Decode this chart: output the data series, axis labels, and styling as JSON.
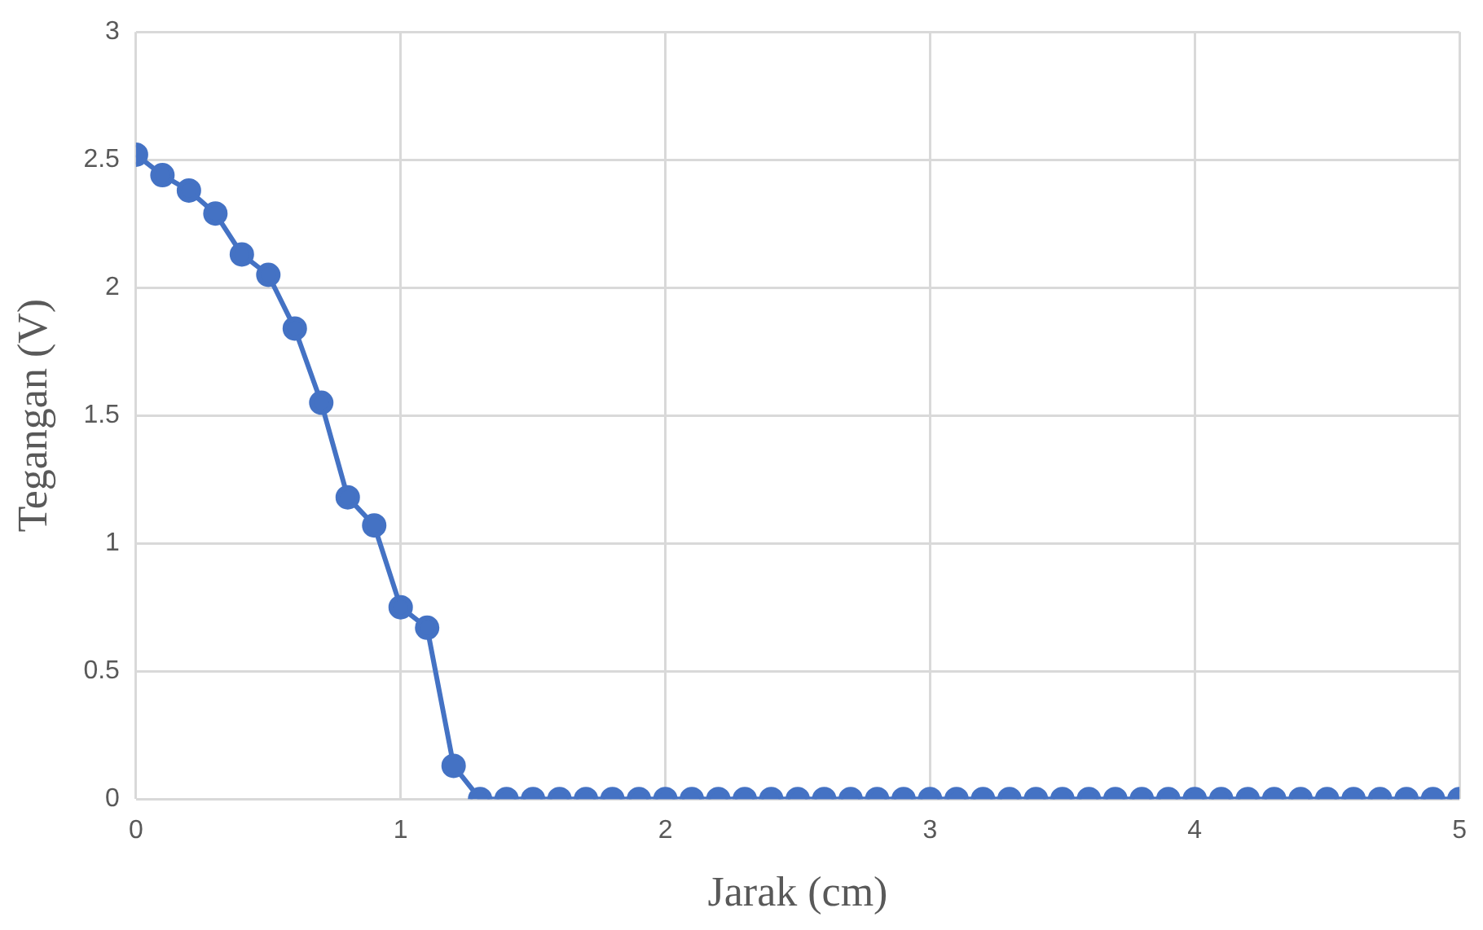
{
  "chart_data": {
    "type": "line",
    "xlabel": "Jarak (cm)",
    "ylabel": "Tegangan (V)",
    "x": [
      0,
      0.1,
      0.2,
      0.3,
      0.4,
      0.5,
      0.6,
      0.7,
      0.8,
      0.9,
      1,
      1.1,
      1.2,
      1.3,
      1.4,
      1.5,
      1.6,
      1.7,
      1.8,
      1.9,
      2,
      2.1,
      2.2,
      2.3,
      2.4,
      2.5,
      2.6,
      2.7,
      2.8,
      2.9,
      3,
      3.1,
      3.2,
      3.3,
      3.4,
      3.5,
      3.6,
      3.7,
      3.8,
      3.9,
      4,
      4.1,
      4.2,
      4.3,
      4.4,
      4.5,
      4.6,
      4.7,
      4.8,
      4.9,
      5
    ],
    "series": [
      {
        "color": "#4472c4",
        "values": [
          2.52,
          2.44,
          2.38,
          2.29,
          2.13,
          2.05,
          1.84,
          1.55,
          1.18,
          1.07,
          0.75,
          0.67,
          0.13,
          0,
          0,
          0,
          0,
          0,
          0,
          0,
          0,
          0,
          0,
          0,
          0,
          0,
          0,
          0,
          0,
          0,
          0,
          0,
          0,
          0,
          0,
          0,
          0,
          0,
          0,
          0,
          0,
          0,
          0,
          0,
          0,
          0,
          0,
          0,
          0,
          0,
          0
        ]
      }
    ],
    "xlim": [
      0,
      5
    ],
    "xticks": [
      0,
      1,
      2,
      3,
      4,
      5
    ],
    "ylim": [
      0,
      3
    ],
    "yticks": [
      0,
      0.5,
      1,
      1.5,
      2,
      2.5,
      3
    ],
    "grid": true,
    "legend": false,
    "marker": "circle",
    "line_style": "solid"
  }
}
